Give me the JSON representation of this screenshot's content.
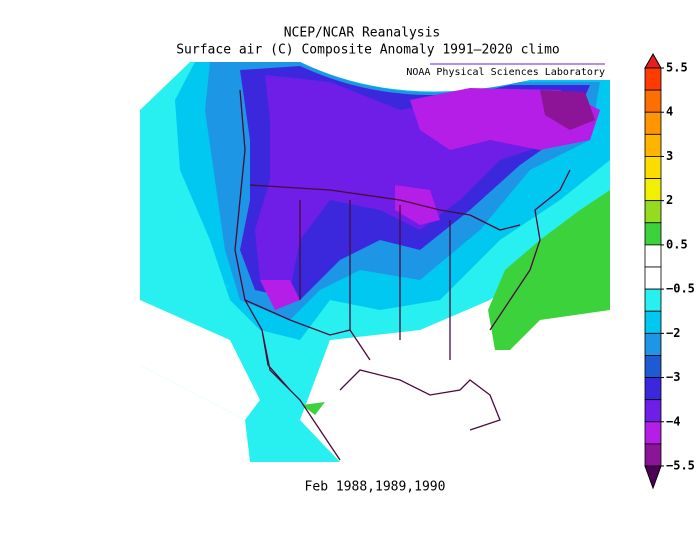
{
  "title": "NCEP/NCAR Reanalysis",
  "subtitle": "Surface air (C) Composite Anomaly 1991–2020 climo",
  "credit": "NOAA Physical Sciences Laboratory",
  "period": "Feb 1988,1989,1990",
  "colorbar": {
    "ticks": [
      5.5,
      4,
      3,
      2,
      0.5,
      {
        "value": -0.5,
        "label": "−0.5"
      },
      {
        "value": -2,
        "label": "−2"
      },
      {
        "value": -3,
        "label": "−3"
      },
      {
        "value": -4,
        "label": "−4"
      },
      {
        "value": -5.5,
        "label": "−5.5"
      }
    ],
    "high_color": "#e61e1e",
    "low_color": "#4e0058",
    "colors": [
      "#ff3c00",
      "#ff6e00",
      "#ff9600",
      "#ffb400",
      "#ffdc00",
      "#f0f000",
      "#96dc1e",
      "#3cd23c",
      "#ffffff",
      "#ffffff",
      "#28f0f0",
      "#00c8f0",
      "#1e96e6",
      "#1e5ad2",
      "#3c28dc",
      "#6e1ee6",
      "#b41ee6",
      "#8c1496"
    ]
  }
}
